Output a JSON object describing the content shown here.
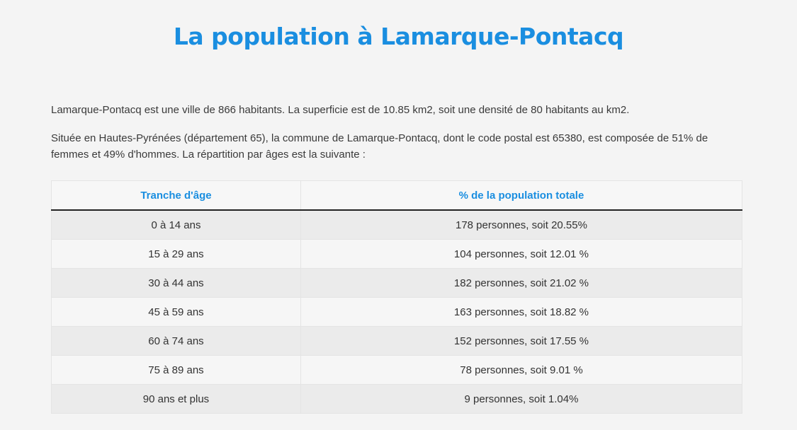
{
  "page": {
    "title": "La population à Lamarque-Pontacq"
  },
  "intro": {
    "paragraph_1": "Lamarque-Pontacq est une ville de 866 habitants. La superficie est de 10.85 km2, soit une densité de 80 habitants au km2.",
    "paragraph_2": "Située en Hautes-Pyrénées (département 65), la commune de Lamarque-Pontacq, dont le code postal est 65380, est composée de 51% de femmes et 49% d'hommes. La répartition par âges est la suivante :"
  },
  "table": {
    "headers": [
      "Tranche d'âge",
      "% de la population totale"
    ],
    "rows": [
      {
        "age": "0 à 14 ans",
        "share": "178 personnes, soit 20.55%"
      },
      {
        "age": "15 à 29 ans",
        "share": "104 personnes, soit 12.01 %"
      },
      {
        "age": "30 à 44 ans",
        "share": "182 personnes, soit 21.02 %"
      },
      {
        "age": "45 à 59 ans",
        "share": "163 personnes, soit 18.82 %"
      },
      {
        "age": "60 à 74 ans",
        "share": "152 personnes, soit 17.55 %"
      },
      {
        "age": "75 à 89 ans",
        "share": "78 personnes, soit 9.01 %"
      },
      {
        "age": "90 ans et plus",
        "share": "9 personnes, soit 1.04%"
      }
    ]
  },
  "colors": {
    "accent": "#1a8ee0",
    "background": "#f4f4f4",
    "row_odd": "#ebebeb",
    "row_even": "#f6f6f6"
  }
}
